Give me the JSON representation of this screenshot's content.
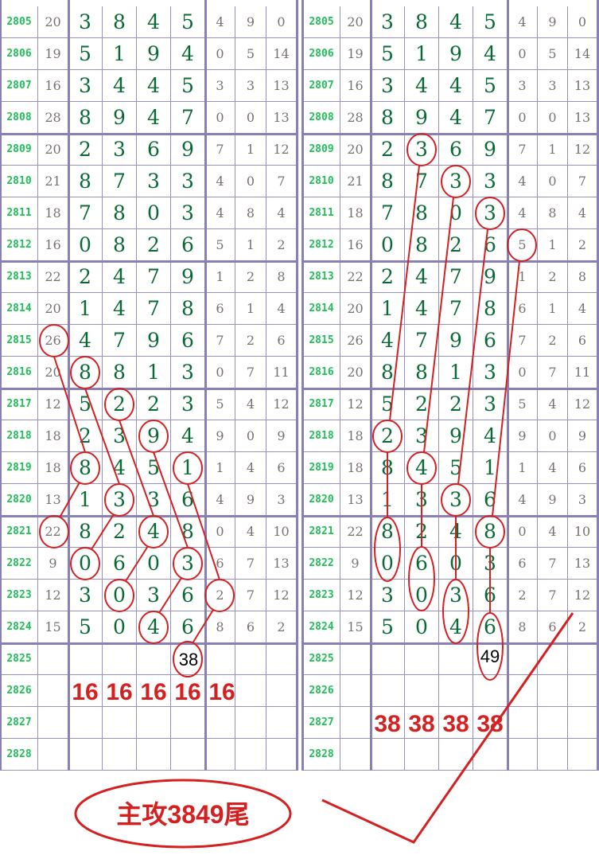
{
  "periods": [
    "2805",
    "2806",
    "2807",
    "2808",
    "2809",
    "2810",
    "2811",
    "2812",
    "2813",
    "2814",
    "2815",
    "2816",
    "2817",
    "2818",
    "2819",
    "2820",
    "2821",
    "2822",
    "2823",
    "2824",
    "2825",
    "2826",
    "2827",
    "2828"
  ],
  "rows": [
    [
      "20",
      "3",
      "8",
      "4",
      "5",
      "4",
      "9",
      "0"
    ],
    [
      "19",
      "5",
      "1",
      "9",
      "4",
      "0",
      "5",
      "14"
    ],
    [
      "16",
      "3",
      "4",
      "4",
      "5",
      "3",
      "3",
      "13"
    ],
    [
      "28",
      "8",
      "9",
      "4",
      "7",
      "0",
      "0",
      "13"
    ],
    [
      "20",
      "2",
      "3",
      "6",
      "9",
      "7",
      "1",
      "12"
    ],
    [
      "21",
      "8",
      "7",
      "3",
      "3",
      "4",
      "0",
      "7"
    ],
    [
      "18",
      "7",
      "8",
      "0",
      "3",
      "4",
      "8",
      "4"
    ],
    [
      "16",
      "0",
      "8",
      "2",
      "6",
      "5",
      "1",
      "2"
    ],
    [
      "22",
      "2",
      "4",
      "7",
      "9",
      "1",
      "2",
      "8"
    ],
    [
      "20",
      "1",
      "4",
      "7",
      "8",
      "6",
      "1",
      "4"
    ],
    [
      "26",
      "4",
      "7",
      "9",
      "6",
      "7",
      "2",
      "6"
    ],
    [
      "20",
      "8",
      "8",
      "1",
      "3",
      "0",
      "7",
      "11"
    ],
    [
      "12",
      "5",
      "2",
      "2",
      "3",
      "5",
      "4",
      "12"
    ],
    [
      "18",
      "2",
      "3",
      "9",
      "4",
      "9",
      "0",
      "9"
    ],
    [
      "18",
      "8",
      "4",
      "5",
      "1",
      "1",
      "4",
      "6"
    ],
    [
      "13",
      "1",
      "3",
      "3",
      "6",
      "4",
      "9",
      "3"
    ],
    [
      "22",
      "8",
      "2",
      "4",
      "8",
      "0",
      "4",
      "10"
    ],
    [
      "9",
      "0",
      "6",
      "0",
      "3",
      "6",
      "7",
      "13"
    ],
    [
      "12",
      "3",
      "0",
      "3",
      "6",
      "2",
      "7",
      "12"
    ],
    [
      "15",
      "5",
      "0",
      "4",
      "6",
      "8",
      "6",
      "2"
    ]
  ],
  "annotations": {
    "left_label": "16",
    "right_label": "38",
    "left_prediction": "38",
    "right_prediction": "49",
    "summary": "主攻3849尾"
  },
  "colors": {
    "period": "#22c05a",
    "digit": "#0a6a36",
    "extra": "#7a7070",
    "grid": "#8a80b8",
    "annotation": "#d42020"
  }
}
